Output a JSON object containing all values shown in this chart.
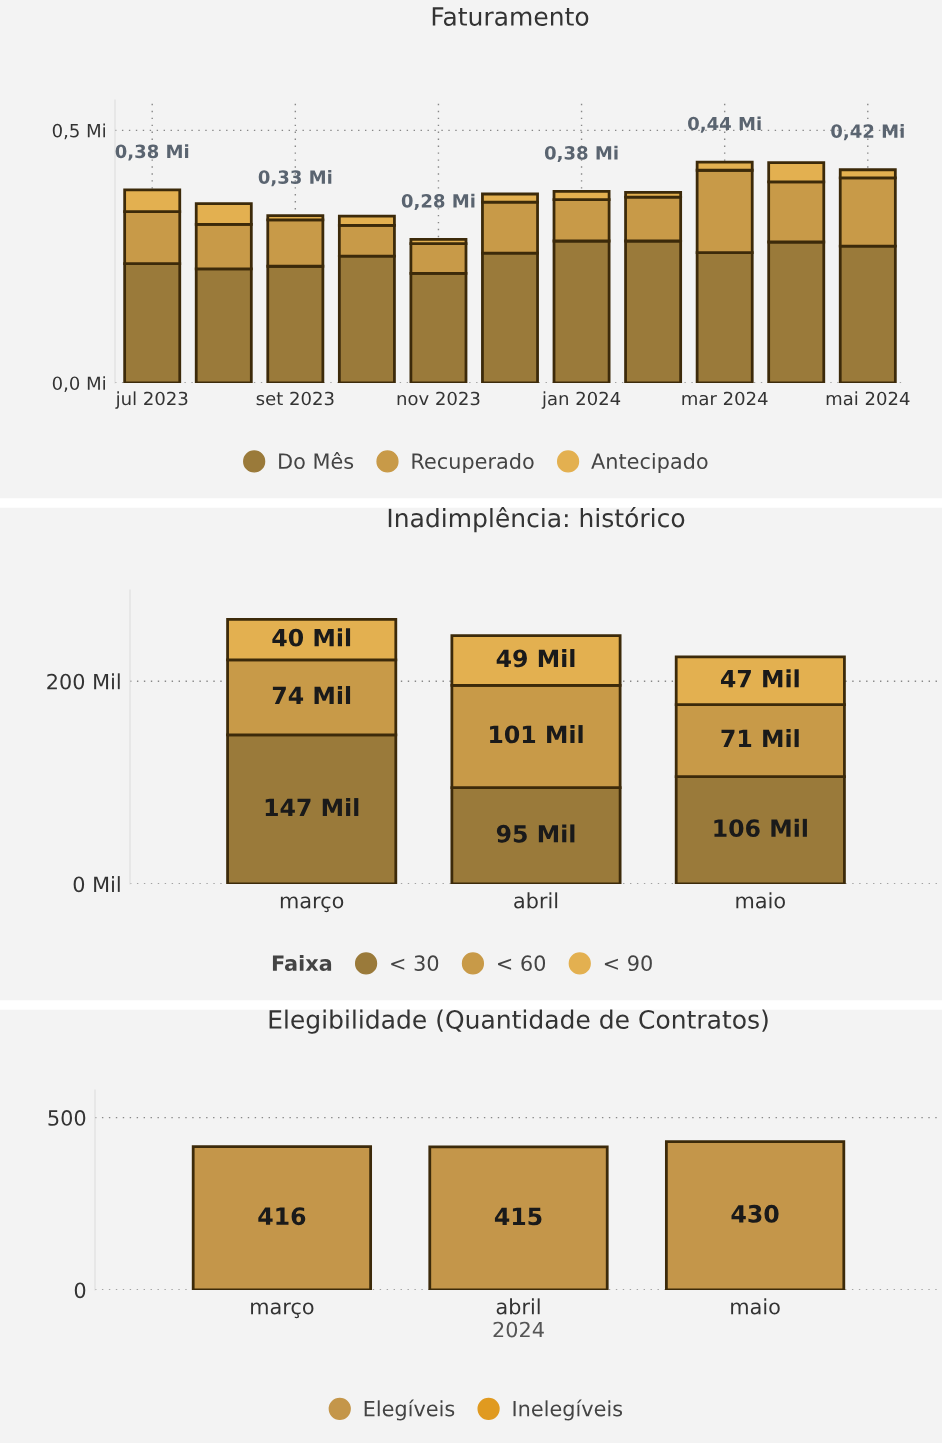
{
  "chart_data": [
    {
      "type": "bar",
      "title": "Faturamento",
      "stacked": true,
      "grid": true,
      "legend": "bottom",
      "categories": [
        "jul 2023",
        null,
        "set 2023",
        null,
        "nov 2023",
        null,
        "jan 2024",
        null,
        "mar 2024",
        null,
        "mai 2024"
      ],
      "series": [
        {
          "name": "Do Mês",
          "color": "#9a7a3a",
          "values": [
            0.236,
            0.226,
            0.231,
            0.251,
            0.217,
            0.257,
            0.281,
            0.281,
            0.258,
            0.279,
            0.271
          ]
        },
        {
          "name": "Recuperado",
          "color": "#c89a48",
          "values": [
            0.103,
            0.088,
            0.092,
            0.061,
            0.059,
            0.101,
            0.082,
            0.087,
            0.163,
            0.119,
            0.135
          ]
        },
        {
          "name": "Antecipado",
          "color": "#e3b050",
          "values": [
            0.043,
            0.041,
            0.008,
            0.018,
            0.008,
            0.016,
            0.016,
            0.009,
            0.016,
            0.038,
            0.016
          ]
        }
      ],
      "totals": [
        "0,38 Mi",
        null,
        "0,33 Mi",
        null,
        "0,28 Mi",
        null,
        "0,38 Mi",
        null,
        "0,44 Mi",
        null,
        "0,42 Mi"
      ],
      "ylim": [
        0,
        0.56
      ],
      "yticks": [
        {
          "value": 0,
          "label": "0,0 Mi"
        },
        {
          "value": 0.5,
          "label": "0,5 Mi"
        }
      ]
    },
    {
      "type": "bar",
      "title": "Inadimplência: histórico",
      "stacked": true,
      "grid": "y",
      "legend": "bottom",
      "legend_title": "Faixa",
      "categories": [
        "março",
        "abril",
        "maio"
      ],
      "series": [
        {
          "name": "< 30",
          "color": "#9a7a3a",
          "values": [
            147,
            95,
            106
          ],
          "value_labels": [
            "147 Mil",
            "95 Mil",
            "106 Mil"
          ]
        },
        {
          "name": "< 60",
          "color": "#c89a48",
          "values": [
            74,
            101,
            71
          ],
          "value_labels": [
            "74 Mil",
            "101 Mil",
            "71 Mil"
          ]
        },
        {
          "name": "< 90",
          "color": "#e3b050",
          "values": [
            40,
            49,
            47
          ],
          "value_labels": [
            "40 Mil",
            "49 Mil",
            "47 Mil"
          ]
        }
      ],
      "ylim": [
        0,
        290
      ],
      "yticks": [
        {
          "value": 0,
          "label": "0 Mil"
        },
        {
          "value": 200,
          "label": "200 Mil"
        }
      ]
    },
    {
      "type": "bar",
      "title": "Elegibilidade (Quantidade de Contratos)",
      "stacked": true,
      "grid": "y",
      "legend": "bottom",
      "data_labels": true,
      "xlabel": "2024",
      "categories": [
        "março",
        "abril",
        "maio"
      ],
      "series": [
        {
          "name": "Elegíveis",
          "color": "#c4964a",
          "values": [
            416,
            415,
            430
          ]
        },
        {
          "name": "Inelegíveis",
          "color": "#e09a20",
          "values": [
            null,
            null,
            null
          ]
        }
      ],
      "ylim": [
        0,
        580
      ],
      "yticks": [
        0,
        500
      ]
    }
  ]
}
